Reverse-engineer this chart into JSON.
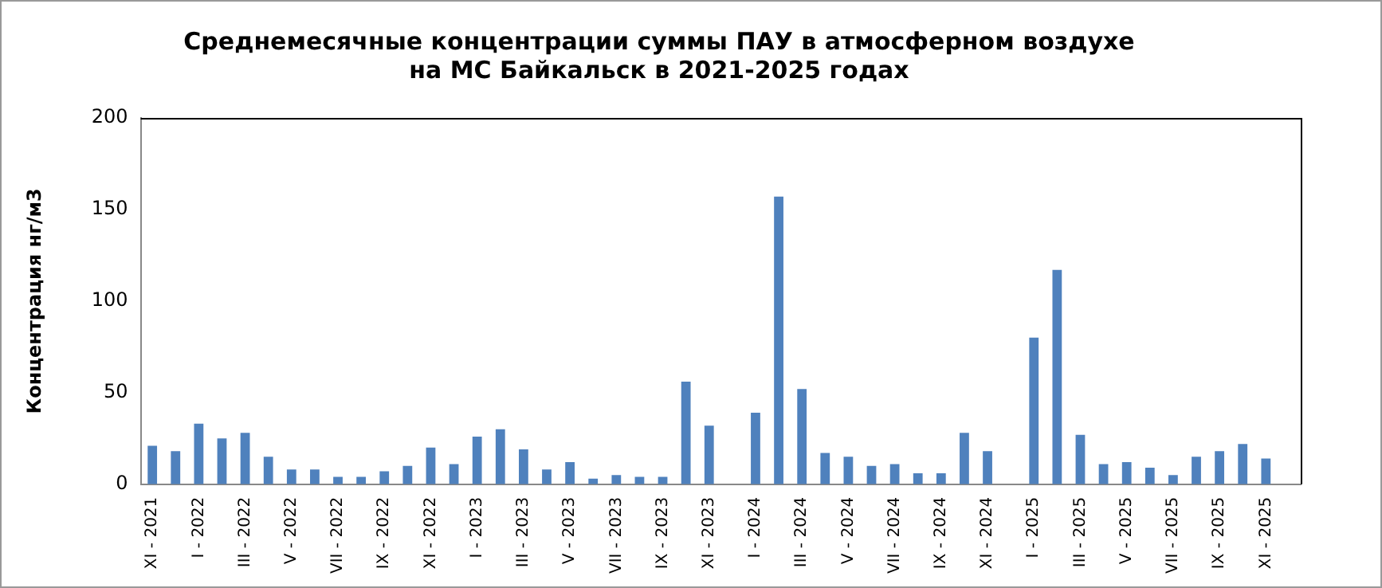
{
  "chart_data": {
    "type": "bar",
    "title": "Среднемесячные концентрации суммы ПАУ в атмосферном воздухе\nна МС Байкальск в 2021-2025 годах",
    "ylabel": "Концентрация нг/м3",
    "categories": [
      "XI - 2021",
      null,
      "I - 2022",
      null,
      "III - 2022",
      null,
      "V - 2022",
      null,
      "VII - 2022",
      null,
      "IX - 2022",
      null,
      "XI - 2022",
      null,
      "I - 2023",
      null,
      "III - 2023",
      null,
      "V - 2023",
      null,
      "VII - 2023",
      null,
      "IX - 2023",
      null,
      "XI - 2023",
      null,
      "I - 2024",
      null,
      "III - 2024",
      null,
      "V - 2024",
      null,
      "VII - 2024",
      null,
      "IX - 2024",
      null,
      "XI - 2024",
      null,
      "I - 2025",
      null,
      "III - 2025",
      null,
      "V - 2025",
      null,
      "VII - 2025",
      null,
      "IX - 2025",
      null,
      "XI - 2025",
      null
    ],
    "values": [
      21,
      18,
      33,
      25,
      28,
      15,
      8,
      8,
      4,
      4,
      7,
      10,
      20,
      11,
      26,
      30,
      19,
      8,
      12,
      3,
      5,
      4,
      4,
      56,
      32,
      null,
      39,
      157,
      52,
      17,
      15,
      10,
      11,
      6,
      6,
      28,
      18,
      null,
      80,
      117,
      27,
      11,
      12,
      9,
      5,
      15,
      18,
      22,
      14,
      null
    ],
    "color": "#4f81bd",
    "ylim": [
      0,
      200
    ],
    "yticks": [
      0,
      50,
      100,
      150,
      200
    ],
    "grid": false,
    "legend": false
  }
}
